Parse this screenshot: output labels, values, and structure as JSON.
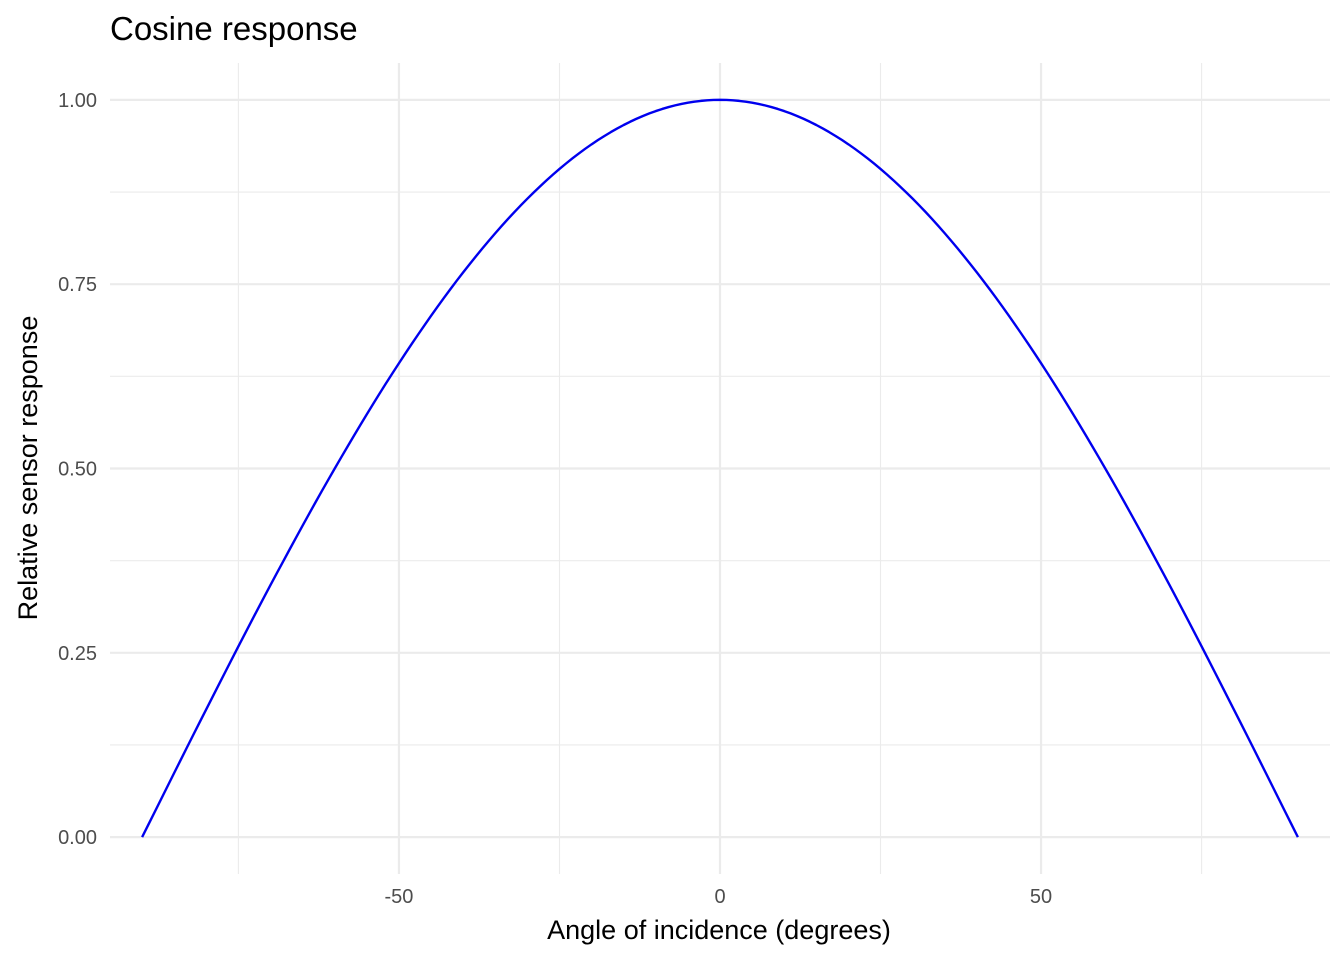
{
  "chart_data": {
    "type": "line",
    "title": "Cosine response",
    "xlabel": "Angle of incidence (degrees)",
    "ylabel": "Relative sensor response",
    "xlim": [
      -95,
      95
    ],
    "ylim": [
      -0.05,
      1.05
    ],
    "x_ticks": [
      -50,
      0,
      50
    ],
    "x_tick_labels": [
      "-50",
      "0",
      "50"
    ],
    "x_minor_ticks": [
      -75,
      -25,
      25,
      75
    ],
    "y_ticks": [
      0,
      0.25,
      0.5,
      0.75,
      1
    ],
    "y_tick_labels": [
      "0.00",
      "0.25",
      "0.50",
      "0.75",
      "1.00"
    ],
    "y_minor_ticks": [
      0.125,
      0.375,
      0.625,
      0.875
    ],
    "grid": true,
    "legend": "none",
    "series": [
      {
        "color": "#0000ee",
        "x": [
          -90,
          -80,
          -70,
          -60,
          -50,
          -40,
          -30,
          -20,
          -10,
          0,
          10,
          20,
          30,
          40,
          50,
          60,
          70,
          80,
          90
        ],
        "y": [
          0,
          0.1736,
          0.342,
          0.5,
          0.6428,
          0.766,
          0.866,
          0.9397,
          0.9848,
          1,
          0.9848,
          0.9397,
          0.866,
          0.766,
          0.6428,
          0.5,
          0.342,
          0.1736,
          0
        ]
      }
    ]
  }
}
